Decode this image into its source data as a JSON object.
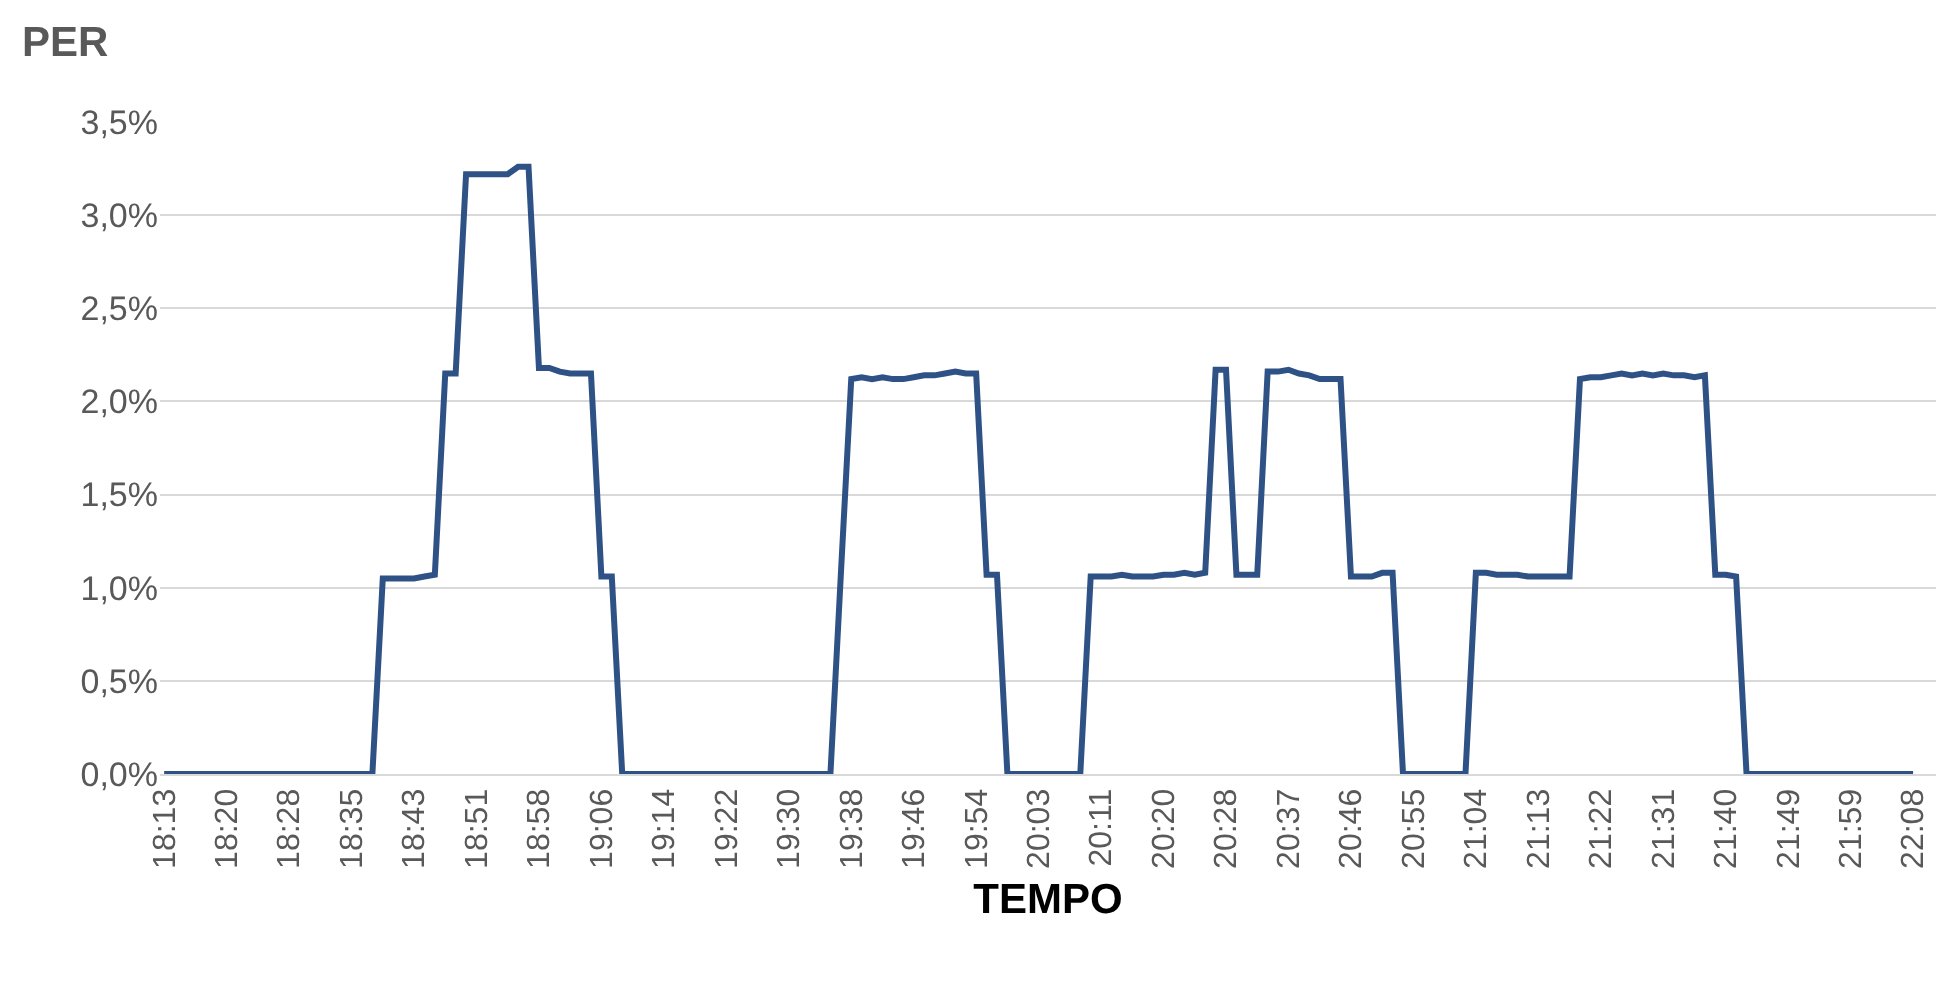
{
  "chart_data": {
    "type": "line",
    "xlabel": "TEMPO",
    "ylabel": "PER",
    "categories": [
      "18:13",
      null,
      null,
      null,
      null,
      null,
      "18:20",
      null,
      null,
      null,
      null,
      null,
      "18:28",
      null,
      null,
      null,
      null,
      null,
      "18:35",
      null,
      null,
      null,
      null,
      null,
      "18:43",
      null,
      null,
      null,
      null,
      null,
      "18:51",
      null,
      null,
      null,
      null,
      null,
      "18:58",
      null,
      null,
      null,
      null,
      null,
      "19:06",
      null,
      null,
      null,
      null,
      null,
      "19:14",
      null,
      null,
      null,
      null,
      null,
      "19:22",
      null,
      null,
      null,
      null,
      null,
      "19:30",
      null,
      null,
      null,
      null,
      null,
      "19:38",
      null,
      null,
      null,
      null,
      null,
      "19:46",
      null,
      null,
      null,
      null,
      null,
      "19:54",
      null,
      null,
      null,
      null,
      null,
      "20:03",
      null,
      null,
      null,
      null,
      null,
      "20:11",
      null,
      null,
      null,
      null,
      null,
      "20:20",
      null,
      null,
      null,
      null,
      null,
      "20:28",
      null,
      null,
      null,
      null,
      null,
      "20:37",
      null,
      null,
      null,
      null,
      null,
      "20:46",
      null,
      null,
      null,
      null,
      null,
      "20:55",
      null,
      null,
      null,
      null,
      null,
      "21:04",
      null,
      null,
      null,
      null,
      null,
      "21:13",
      null,
      null,
      null,
      null,
      null,
      "21:22",
      null,
      null,
      null,
      null,
      null,
      "21:31",
      null,
      null,
      null,
      null,
      null,
      "21:40",
      null,
      null,
      null,
      null,
      null,
      "21:49",
      null,
      null,
      null,
      null,
      null,
      "21:59",
      null,
      null,
      null,
      null,
      null,
      "22:08"
    ],
    "series": [
      {
        "color": "#2f5286",
        "values": [
          0,
          0,
          0,
          0,
          0,
          0,
          0,
          0,
          0,
          0,
          0,
          0,
          0,
          0,
          0,
          0,
          0,
          0,
          0,
          0,
          0,
          1.05,
          1.05,
          1.05,
          1.05,
          1.06,
          1.07,
          2.15,
          2.15,
          3.22,
          3.22,
          3.22,
          3.22,
          3.22,
          3.26,
          3.26,
          2.18,
          2.18,
          2.16,
          2.15,
          2.15,
          2.15,
          1.06,
          1.06,
          0,
          0,
          0,
          0,
          0,
          0,
          0,
          0,
          0,
          0,
          0,
          0,
          0,
          0,
          0,
          0,
          0,
          0,
          0,
          0,
          0,
          1.07,
          2.12,
          2.13,
          2.12,
          2.13,
          2.12,
          2.12,
          2.13,
          2.14,
          2.14,
          2.15,
          2.16,
          2.15,
          2.15,
          1.07,
          1.07,
          0,
          0,
          0,
          0,
          0,
          0,
          0,
          0,
          1.06,
          1.06,
          1.06,
          1.07,
          1.06,
          1.06,
          1.06,
          1.07,
          1.07,
          1.08,
          1.07,
          1.08,
          2.17,
          2.17,
          1.07,
          1.07,
          1.07,
          2.16,
          2.16,
          2.17,
          2.15,
          2.14,
          2.12,
          2.12,
          2.12,
          1.06,
          1.06,
          1.06,
          1.08,
          1.08,
          0,
          0,
          0,
          0,
          0,
          0,
          0,
          1.08,
          1.08,
          1.07,
          1.07,
          1.07,
          1.06,
          1.06,
          1.06,
          1.06,
          1.06,
          2.12,
          2.13,
          2.13,
          2.14,
          2.15,
          2.14,
          2.15,
          2.14,
          2.15,
          2.14,
          2.14,
          2.13,
          2.14,
          1.07,
          1.07,
          1.06,
          0,
          0,
          0,
          0,
          0,
          0,
          0,
          0,
          0,
          0,
          0,
          0,
          0,
          0,
          0,
          0,
          0
        ]
      }
    ],
    "ylim": [
      0,
      3.5
    ],
    "yticks": [
      {
        "value": 0,
        "label": "0,0%"
      },
      {
        "value": 0.5,
        "label": "0,5%"
      },
      {
        "value": 1,
        "label": "1,0%"
      },
      {
        "value": 1.5,
        "label": "1,5%"
      },
      {
        "value": 2,
        "label": "2,0%"
      },
      {
        "value": 2.5,
        "label": "2,5%"
      },
      {
        "value": 3,
        "label": "3,0%"
      },
      {
        "value": 3.5,
        "label": "3,5%"
      }
    ],
    "grid": "y",
    "marker": "none",
    "line_style": "solid"
  }
}
